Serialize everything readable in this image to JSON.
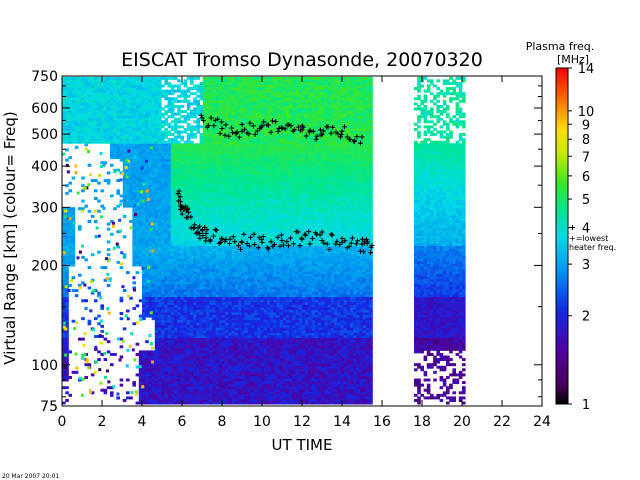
{
  "chart_data": {
    "type": "heatmap",
    "title": "EISCAT Tromso Dynasonde,  20070320",
    "xlabel": "UT TIME",
    "ylabel": "Virtual Range [km]   (colour= Freq)",
    "x_ticks": [
      0,
      2,
      4,
      6,
      8,
      10,
      12,
      14,
      16,
      18,
      20,
      22,
      24
    ],
    "xlim": [
      0,
      24
    ],
    "y_scale": "log",
    "y_ticks": [
      75,
      100,
      200,
      300,
      400,
      500,
      600,
      750
    ],
    "ylim": [
      75,
      750
    ],
    "colorbar": {
      "title": "Plasma freq.",
      "unit": "[MHz]",
      "scale": "log",
      "ticks": [
        1,
        2,
        3,
        4,
        5,
        6,
        7,
        8,
        9,
        10,
        14
      ],
      "range": [
        1,
        14
      ],
      "marker_label_1": "+=lowest",
      "marker_label_2": "heater freq.",
      "marker_value": 4
    },
    "data_gaps": [
      [
        15.5,
        17.6
      ],
      [
        20.1,
        24
      ]
    ],
    "lowest_heater_freq_trace": [
      {
        "x": 5.8,
        "y": 330
      },
      {
        "x": 6.0,
        "y": 300
      },
      {
        "x": 6.3,
        "y": 280
      },
      {
        "x": 6.8,
        "y": 260
      },
      {
        "x": 7.2,
        "y": 250
      },
      {
        "x": 8.0,
        "y": 240
      },
      {
        "x": 9.0,
        "y": 235
      },
      {
        "x": 10.0,
        "y": 235
      },
      {
        "x": 11.0,
        "y": 238
      },
      {
        "x": 12.0,
        "y": 240
      },
      {
        "x": 13.0,
        "y": 238
      },
      {
        "x": 14.0,
        "y": 235
      },
      {
        "x": 15.0,
        "y": 232
      },
      {
        "x": 15.5,
        "y": 230
      }
    ],
    "upper_trace": [
      {
        "x": 7.0,
        "y": 560
      },
      {
        "x": 8.0,
        "y": 520
      },
      {
        "x": 9.0,
        "y": 510
      },
      {
        "x": 10.0,
        "y": 530
      },
      {
        "x": 11.0,
        "y": 520
      },
      {
        "x": 12.0,
        "y": 515
      },
      {
        "x": 13.0,
        "y": 500
      },
      {
        "x": 14.0,
        "y": 510
      },
      {
        "x": 15.0,
        "y": 490
      }
    ]
  },
  "footer": {
    "timestamp": "20 Mar 2007 20:01"
  }
}
